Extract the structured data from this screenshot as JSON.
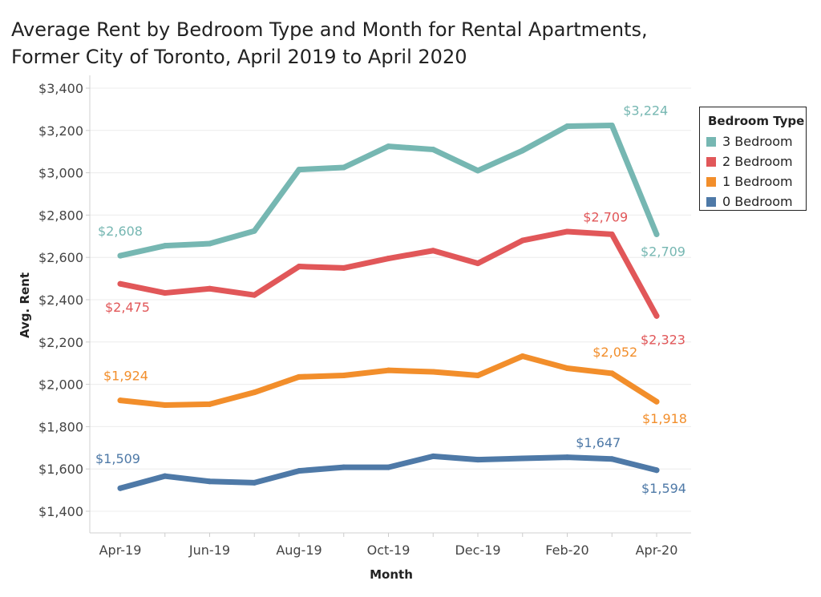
{
  "title_line1": "Average Rent by Bedroom Type and Month for Rental Apartments,",
  "title_line2": "Former City of Toronto, April 2019 to April 2020",
  "legend_title": "Bedroom Type",
  "chart_data": {
    "type": "line",
    "title": "Average Rent by Bedroom Type and Month for Rental Apartments, Former City of Toronto, April 2019 to April 2020",
    "xlabel": "Month",
    "ylabel": "Avg. Rent",
    "ylim": [
      1400,
      3400
    ],
    "y_ticks": [
      1400,
      1600,
      1800,
      2000,
      2200,
      2400,
      2600,
      2800,
      3000,
      3200,
      3400
    ],
    "y_tick_labels": [
      "$1,400",
      "$1,600",
      "$1,800",
      "$2,000",
      "$2,200",
      "$2,400",
      "$2,600",
      "$2,800",
      "$3,000",
      "$3,200",
      "$3,400"
    ],
    "x": [
      "Apr-19",
      "May-19",
      "Jun-19",
      "Jul-19",
      "Aug-19",
      "Sep-19",
      "Oct-19",
      "Nov-19",
      "Dec-19",
      "Jan-20",
      "Feb-20",
      "Mar-20",
      "Apr-20"
    ],
    "x_tick_labels": [
      "Apr-19",
      "",
      "Jun-19",
      "",
      "Aug-19",
      "",
      "Oct-19",
      "",
      "Dec-19",
      "",
      "Feb-20",
      "",
      "Apr-20"
    ],
    "grid": "horizontal",
    "legend_position": "right",
    "series": [
      {
        "name": "3 Bedroom",
        "color": "#76b7b2",
        "values": [
          2608,
          2655,
          2665,
          2725,
          3015,
          3025,
          3125,
          3110,
          3010,
          3105,
          3220,
          3224,
          2709
        ],
        "labels": [
          {
            "index": 0,
            "text": "$2,608"
          },
          {
            "index": 11,
            "text": "$3,224"
          },
          {
            "index": 12,
            "text": "$2,709"
          }
        ]
      },
      {
        "name": "2 Bedroom",
        "color": "#e15759",
        "values": [
          2475,
          2432,
          2452,
          2422,
          2557,
          2550,
          2595,
          2632,
          2572,
          2680,
          2722,
          2709,
          2323
        ],
        "labels": [
          {
            "index": 0,
            "text": "$2,475"
          },
          {
            "index": 11,
            "text": "$2,709"
          },
          {
            "index": 12,
            "text": "$2,323"
          }
        ]
      },
      {
        "name": "1 Bedroom",
        "color": "#f28e2b",
        "values": [
          1924,
          1902,
          1906,
          1962,
          2035,
          2042,
          2066,
          2059,
          2042,
          2133,
          2076,
          2052,
          1918
        ],
        "labels": [
          {
            "index": 0,
            "text": "$1,924"
          },
          {
            "index": 11,
            "text": "$2,052"
          },
          {
            "index": 12,
            "text": "$1,918"
          }
        ]
      },
      {
        "name": "0 Bedroom",
        "color": "#4e79a7",
        "values": [
          1509,
          1566,
          1541,
          1535,
          1591,
          1608,
          1608,
          1660,
          1644,
          1650,
          1655,
          1647,
          1594
        ],
        "labels": [
          {
            "index": 0,
            "text": "$1,509"
          },
          {
            "index": 11,
            "text": "$1,647"
          },
          {
            "index": 12,
            "text": "$1,594"
          }
        ]
      }
    ]
  }
}
